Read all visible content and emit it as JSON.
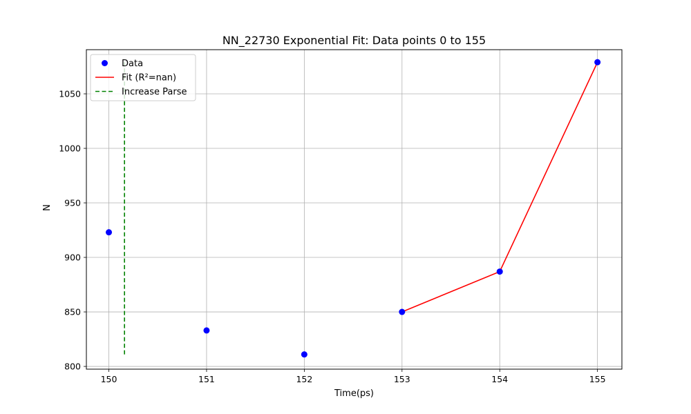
{
  "chart_data": {
    "type": "scatter",
    "title": "NN_22730 Exponential Fit: Data points 0 to 155",
    "xlabel": "Time(ps)",
    "ylabel": "N",
    "xlim": [
      149.77,
      155.25
    ],
    "ylim": [
      797.5,
      1090.5
    ],
    "x_ticks": [
      150,
      151,
      152,
      153,
      154,
      155
    ],
    "y_ticks": [
      800,
      850,
      900,
      950,
      1000,
      1050
    ],
    "grid": true,
    "legend_position": "top-left",
    "series": [
      {
        "name": "Data",
        "kind": "scatter",
        "color": "#0000ff",
        "x": [
          150,
          151,
          152,
          153,
          154,
          155
        ],
        "y": [
          923,
          833,
          811,
          850,
          887,
          1079
        ]
      },
      {
        "name": "Fit (R²=nan)",
        "kind": "line",
        "color": "#ff0000",
        "x": [
          153,
          154,
          155
        ],
        "y": [
          850,
          887,
          1079
        ]
      },
      {
        "name": "Increase Parse",
        "kind": "vline",
        "color": "#008000",
        "dashed": true,
        "x": 150.16,
        "y_range": [
          811,
          1079
        ]
      }
    ]
  }
}
